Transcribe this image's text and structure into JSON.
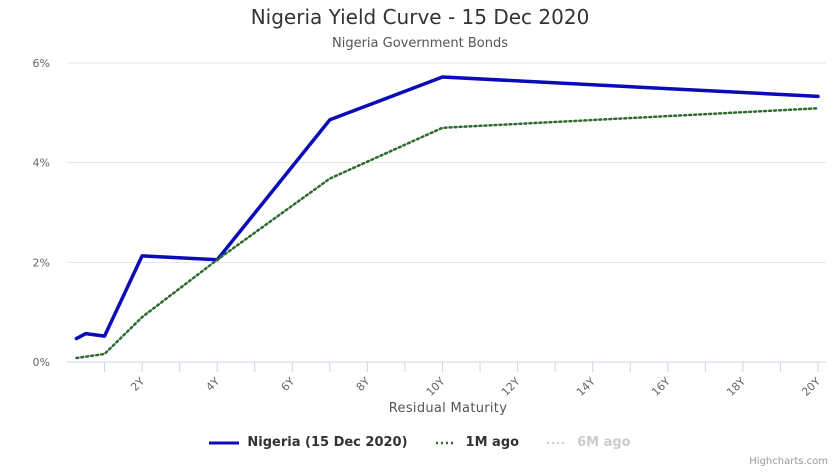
{
  "chart_data": {
    "type": "line",
    "title": "Nigeria Yield Curve - 15 Dec 2020",
    "subtitle": "Nigeria Government Bonds",
    "xlabel": "Residual Maturity",
    "ylabel": "",
    "x_ticks": [
      "2Y",
      "4Y",
      "6Y",
      "8Y",
      "10Y",
      "12Y",
      "14Y",
      "16Y",
      "18Y",
      "20Y"
    ],
    "y_ticks": [
      "0%",
      "2%",
      "4%",
      "6%"
    ],
    "xlim": [
      0,
      20
    ],
    "ylim": [
      0,
      6
    ],
    "grid": true,
    "legend_position": "bottom",
    "series": [
      {
        "name": "Nigeria (15 Dec 2020)",
        "color": "#0b0bb8",
        "style": "solid",
        "visible": true,
        "x": [
          0.25,
          0.5,
          1,
          2,
          4,
          7,
          10,
          20
        ],
        "values": [
          0.47,
          0.57,
          0.52,
          2.13,
          2.05,
          4.86,
          5.72,
          5.33
        ]
      },
      {
        "name": "1M ago",
        "color": "#2e6b2e",
        "style": "dotted",
        "visible": true,
        "x": [
          0.25,
          1,
          2,
          4,
          7,
          10,
          20
        ],
        "values": [
          0.08,
          0.16,
          0.9,
          2.05,
          3.68,
          4.7,
          5.09
        ]
      },
      {
        "name": "6M ago",
        "color": "#cccccc",
        "style": "dotted",
        "visible": false,
        "x": [],
        "values": []
      }
    ]
  },
  "legend": {
    "items": [
      "Nigeria (15 Dec 2020)",
      "1M ago",
      "6M ago"
    ]
  },
  "credits": "Highcharts.com"
}
